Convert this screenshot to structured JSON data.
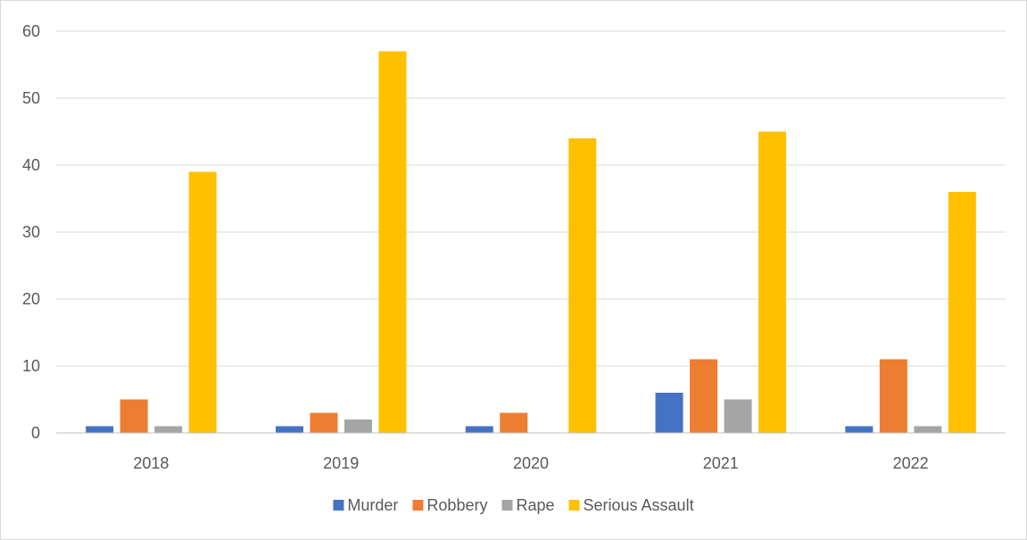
{
  "chart_data": {
    "type": "bar",
    "categories": [
      "2018",
      "2019",
      "2020",
      "2021",
      "2022"
    ],
    "series": [
      {
        "name": "Murder",
        "values": [
          1,
          1,
          1,
          6,
          1
        ],
        "color": "#4472c4"
      },
      {
        "name": "Robbery",
        "values": [
          5,
          3,
          3,
          11,
          11
        ],
        "color": "#ed7d31"
      },
      {
        "name": "Rape",
        "values": [
          1,
          2,
          0,
          5,
          1
        ],
        "color": "#a5a5a5"
      },
      {
        "name": "Serious Assault",
        "values": [
          39,
          57,
          44,
          45,
          36
        ],
        "color": "#ffc000"
      }
    ],
    "ylim": [
      0,
      60
    ],
    "yticks": [
      0,
      10,
      20,
      30,
      40,
      50,
      60
    ],
    "grid": true,
    "legend_position": "bottom",
    "gridline_color": "#d9d9d9",
    "axis_line_color": "#bfbfbf"
  }
}
